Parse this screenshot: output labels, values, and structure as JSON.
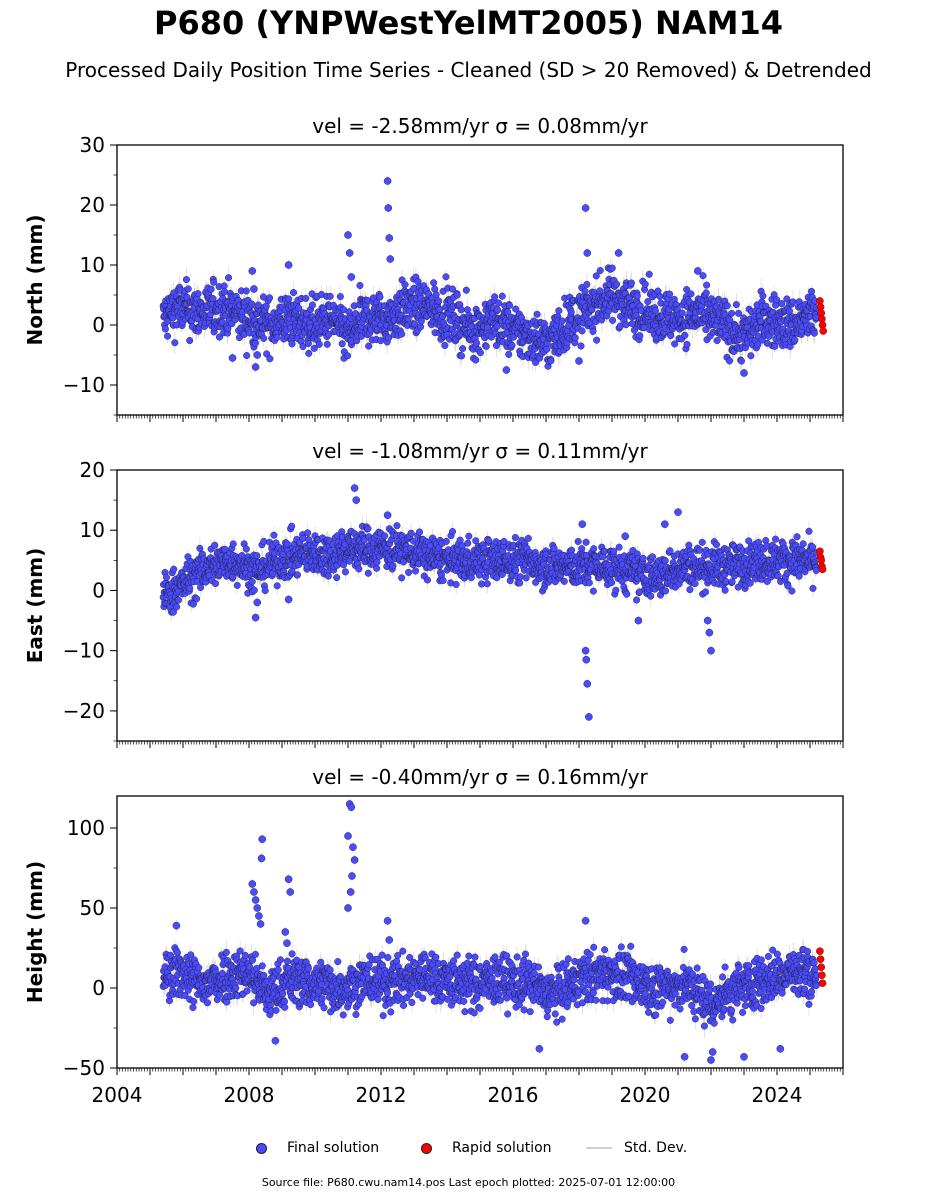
{
  "title": "P680 (YNPWestYelMT2005) NAM14",
  "subtitle": "Processed Daily Position Time Series - Cleaned (SD > 20 Removed) & Detrended",
  "legend": {
    "final": "Final solution",
    "rapid": "Rapid solution",
    "stddev": "Std. Dev."
  },
  "source_note": "Source file: P680.cwu.nam14.pos  Last epoch plotted: 2025-07-01 12:00:00",
  "colors": {
    "final": "#4a4aff",
    "rapid": "#ff0000",
    "stddev": "#bdbdbd",
    "edge": "#1a1a1a"
  },
  "chart_data": [
    {
      "type": "scatter",
      "title": "vel = -2.58mm/yr   σ = 0.08mm/yr",
      "ylabel": "North (mm)",
      "xlim": [
        2004,
        2026
      ],
      "ylim": [
        -15,
        30
      ],
      "yticks": [
        -10,
        0,
        10,
        20,
        30
      ],
      "xticks": [
        2004,
        2008,
        2012,
        2016,
        2020,
        2024
      ],
      "trend": [
        [
          2005.4,
          1
        ],
        [
          2005.8,
          3
        ],
        [
          2006.6,
          2
        ],
        [
          2007.2,
          3
        ],
        [
          2008.0,
          1
        ],
        [
          2008.6,
          0
        ],
        [
          2009.2,
          1
        ],
        [
          2010.0,
          0
        ],
        [
          2010.5,
          1
        ],
        [
          2011.0,
          -2
        ],
        [
          2011.4,
          1
        ],
        [
          2012.2,
          1
        ],
        [
          2012.8,
          3
        ],
        [
          2013.5,
          3
        ],
        [
          2014.2,
          1
        ],
        [
          2014.8,
          -1
        ],
        [
          2015.4,
          1
        ],
        [
          2016.0,
          -1
        ],
        [
          2016.6,
          -2
        ],
        [
          2017.1,
          -3
        ],
        [
          2017.6,
          0
        ],
        [
          2018.4,
          3
        ],
        [
          2019.0,
          5
        ],
        [
          2019.6,
          3
        ],
        [
          2020.2,
          2
        ],
        [
          2021.0,
          1
        ],
        [
          2021.6,
          2
        ],
        [
          2022.4,
          0
        ],
        [
          2023.0,
          -2
        ],
        [
          2023.6,
          1
        ],
        [
          2024.4,
          0
        ],
        [
          2025.2,
          2
        ]
      ],
      "noise": 2.2,
      "outliers": [
        [
          2008.1,
          9
        ],
        [
          2008.15,
          6
        ],
        [
          2008.2,
          -7
        ],
        [
          2008.25,
          -5
        ],
        [
          2007.5,
          -5.5
        ],
        [
          2009.2,
          10
        ],
        [
          2011.0,
          15
        ],
        [
          2011.05,
          12
        ],
        [
          2011.1,
          8
        ],
        [
          2012.2,
          24
        ],
        [
          2012.22,
          19.5
        ],
        [
          2012.25,
          14.5
        ],
        [
          2012.28,
          11
        ],
        [
          2018.2,
          19.5
        ],
        [
          2018.25,
          12
        ],
        [
          2019.2,
          12
        ],
        [
          2015.8,
          -7.5
        ],
        [
          2018.0,
          -6
        ],
        [
          2021.6,
          9
        ],
        [
          2023.0,
          -8
        ]
      ],
      "rapid": [
        [
          2025.3,
          4
        ],
        [
          2025.32,
          3
        ],
        [
          2025.34,
          2
        ],
        [
          2025.36,
          1
        ],
        [
          2025.38,
          0
        ],
        [
          2025.4,
          -1
        ]
      ]
    },
    {
      "type": "scatter",
      "title": "vel = -1.08mm/yr   σ = 0.11mm/yr",
      "ylabel": "East (mm)",
      "xlim": [
        2004,
        2026
      ],
      "ylim": [
        -25,
        20
      ],
      "yticks": [
        -20,
        -10,
        0,
        10,
        20
      ],
      "xticks": [
        2004,
        2008,
        2012,
        2016,
        2020,
        2024
      ],
      "trend": [
        [
          2005.4,
          -1
        ],
        [
          2006.0,
          1
        ],
        [
          2006.8,
          4
        ],
        [
          2007.6,
          5
        ],
        [
          2008.2,
          3
        ],
        [
          2008.8,
          5
        ],
        [
          2009.6,
          6
        ],
        [
          2010.4,
          6
        ],
        [
          2011.0,
          7
        ],
        [
          2011.6,
          7
        ],
        [
          2012.4,
          7
        ],
        [
          2013.2,
          6
        ],
        [
          2014.0,
          5
        ],
        [
          2014.8,
          5
        ],
        [
          2015.6,
          5
        ],
        [
          2016.4,
          5
        ],
        [
          2017.2,
          4
        ],
        [
          2018.0,
          4
        ],
        [
          2018.8,
          4
        ],
        [
          2019.6,
          3
        ],
        [
          2020.4,
          2
        ],
        [
          2021.0,
          4
        ],
        [
          2021.8,
          4
        ],
        [
          2022.6,
          4
        ],
        [
          2023.4,
          5
        ],
        [
          2024.2,
          5
        ],
        [
          2025.2,
          5
        ]
      ],
      "noise": 1.8,
      "outliers": [
        [
          2008.2,
          -4.5
        ],
        [
          2008.25,
          -2
        ],
        [
          2011.2,
          17
        ],
        [
          2011.25,
          15
        ],
        [
          2012.2,
          12.5
        ],
        [
          2018.2,
          -10
        ],
        [
          2018.22,
          -11.5
        ],
        [
          2018.25,
          -15.5
        ],
        [
          2018.3,
          -21
        ],
        [
          2018.1,
          11
        ],
        [
          2019.4,
          9
        ],
        [
          2020.6,
          11
        ],
        [
          2021.0,
          13
        ],
        [
          2021.9,
          -5
        ],
        [
          2021.95,
          -7
        ],
        [
          2022.0,
          -10
        ],
        [
          2019.8,
          -5
        ],
        [
          2009.2,
          -1.5
        ]
      ],
      "rapid": [
        [
          2025.3,
          6.5
        ],
        [
          2025.32,
          5.5
        ],
        [
          2025.34,
          5
        ],
        [
          2025.36,
          4
        ],
        [
          2025.38,
          3.5
        ]
      ]
    },
    {
      "type": "scatter",
      "title": "vel = -0.40mm/yr   σ = 0.16mm/yr",
      "ylabel": "Height (mm)",
      "xlim": [
        2004,
        2026
      ],
      "ylim": [
        -50,
        120
      ],
      "yticks": [
        -50,
        0,
        50,
        100
      ],
      "xticks": [
        2004,
        2008,
        2012,
        2016,
        2020,
        2024
      ],
      "trend": [
        [
          2005.4,
          5
        ],
        [
          2006.0,
          10
        ],
        [
          2006.6,
          0
        ],
        [
          2007.2,
          8
        ],
        [
          2008.0,
          10
        ],
        [
          2008.6,
          -5
        ],
        [
          2009.2,
          5
        ],
        [
          2010.0,
          3
        ],
        [
          2010.8,
          0
        ],
        [
          2011.6,
          5
        ],
        [
          2012.4,
          3
        ],
        [
          2013.2,
          8
        ],
        [
          2014.0,
          5
        ],
        [
          2014.8,
          2
        ],
        [
          2015.6,
          5
        ],
        [
          2016.4,
          3
        ],
        [
          2017.2,
          -5
        ],
        [
          2018.0,
          5
        ],
        [
          2018.8,
          10
        ],
        [
          2019.6,
          5
        ],
        [
          2020.4,
          0
        ],
        [
          2021.2,
          3
        ],
        [
          2022.0,
          -10
        ],
        [
          2022.8,
          0
        ],
        [
          2023.6,
          5
        ],
        [
          2024.4,
          10
        ],
        [
          2025.2,
          8
        ]
      ],
      "noise": 8,
      "outliers": [
        [
          2008.15,
          60
        ],
        [
          2008.2,
          55
        ],
        [
          2008.25,
          50
        ],
        [
          2008.3,
          45
        ],
        [
          2008.35,
          40
        ],
        [
          2008.4,
          93
        ],
        [
          2008.38,
          81
        ],
        [
          2008.1,
          65
        ],
        [
          2009.2,
          68
        ],
        [
          2009.25,
          60
        ],
        [
          2009.1,
          35
        ],
        [
          2009.15,
          28
        ],
        [
          2011.05,
          115
        ],
        [
          2011.1,
          113
        ],
        [
          2011.0,
          95
        ],
        [
          2011.15,
          88
        ],
        [
          2011.2,
          80
        ],
        [
          2011.12,
          70
        ],
        [
          2011.08,
          60
        ],
        [
          2011.0,
          50
        ],
        [
          2012.2,
          42
        ],
        [
          2012.25,
          30
        ],
        [
          2018.2,
          42
        ],
        [
          2022.0,
          -45
        ],
        [
          2022.05,
          -40
        ],
        [
          2021.2,
          -43
        ],
        [
          2023.0,
          -43
        ],
        [
          2024.1,
          -38
        ],
        [
          2016.8,
          -38
        ],
        [
          2008.8,
          -33
        ],
        [
          2005.8,
          39
        ]
      ],
      "rapid": [
        [
          2025.3,
          23
        ],
        [
          2025.32,
          18
        ],
        [
          2025.34,
          13
        ],
        [
          2025.36,
          8
        ],
        [
          2025.38,
          3
        ]
      ]
    }
  ]
}
